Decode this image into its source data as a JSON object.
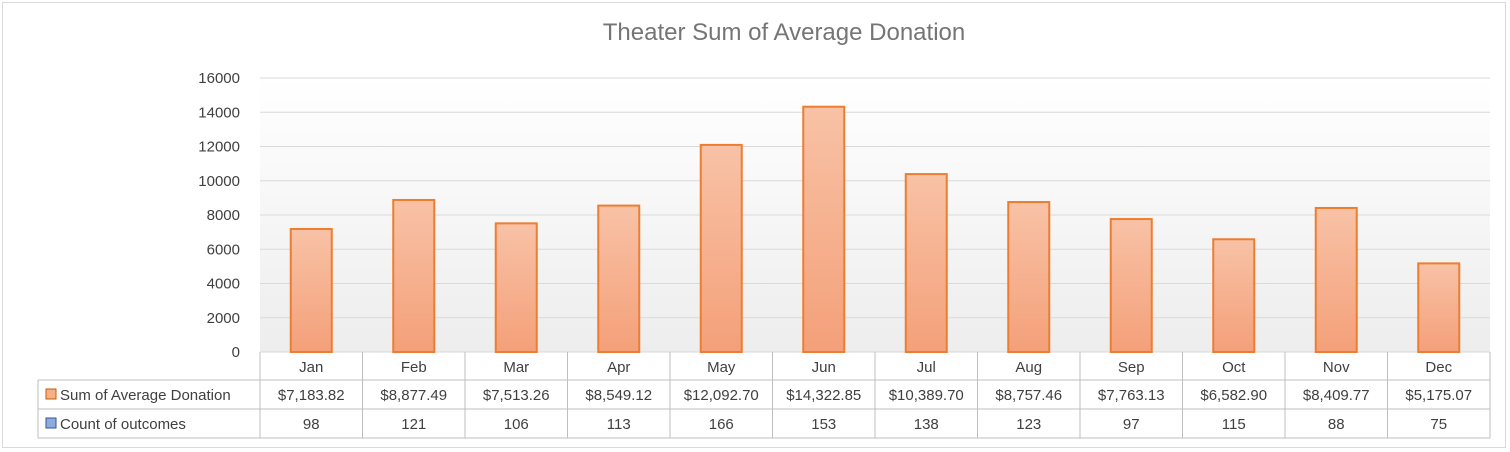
{
  "chart_data": {
    "type": "bar",
    "title": "Theater Sum of Average Donation",
    "categories": [
      "Jan",
      "Feb",
      "Mar",
      "Apr",
      "May",
      "Jun",
      "Jul",
      "Aug",
      "Sep",
      "Oct",
      "Nov",
      "Dec"
    ],
    "y_ticks": [
      "0",
      "2000",
      "4000",
      "6000",
      "8000",
      "10000",
      "12000",
      "14000",
      "16000"
    ],
    "ylim": [
      0,
      16000
    ],
    "grid": true,
    "bar_color": "#ed7d31",
    "bar_fill_top": "#f8c2a6",
    "bar_fill_bottom": "#f4a079",
    "series": [
      {
        "name": "Sum of Average Donation",
        "color": "#f4b183",
        "values": [
          7183.82,
          8877.49,
          7513.26,
          8549.12,
          12092.7,
          14322.85,
          10389.7,
          8757.46,
          7763.13,
          6582.9,
          8409.77,
          5175.07
        ],
        "labels": [
          "$7,183.82",
          "$8,877.49",
          "$7,513.26",
          "$8,549.12",
          "$12,092.70",
          "$14,322.85",
          "$10,389.70",
          "$8,757.46",
          "$7,763.13",
          "$6,582.90",
          "$8,409.77",
          "$5,175.07"
        ]
      },
      {
        "name": "Count of outcomes",
        "color": "#8faadc",
        "values": [
          98,
          121,
          106,
          113,
          166,
          153,
          138,
          123,
          97,
          115,
          88,
          75
        ],
        "labels": [
          "98",
          "121",
          "106",
          "113",
          "166",
          "153",
          "138",
          "123",
          "97",
          "115",
          "88",
          "75"
        ]
      }
    ]
  }
}
